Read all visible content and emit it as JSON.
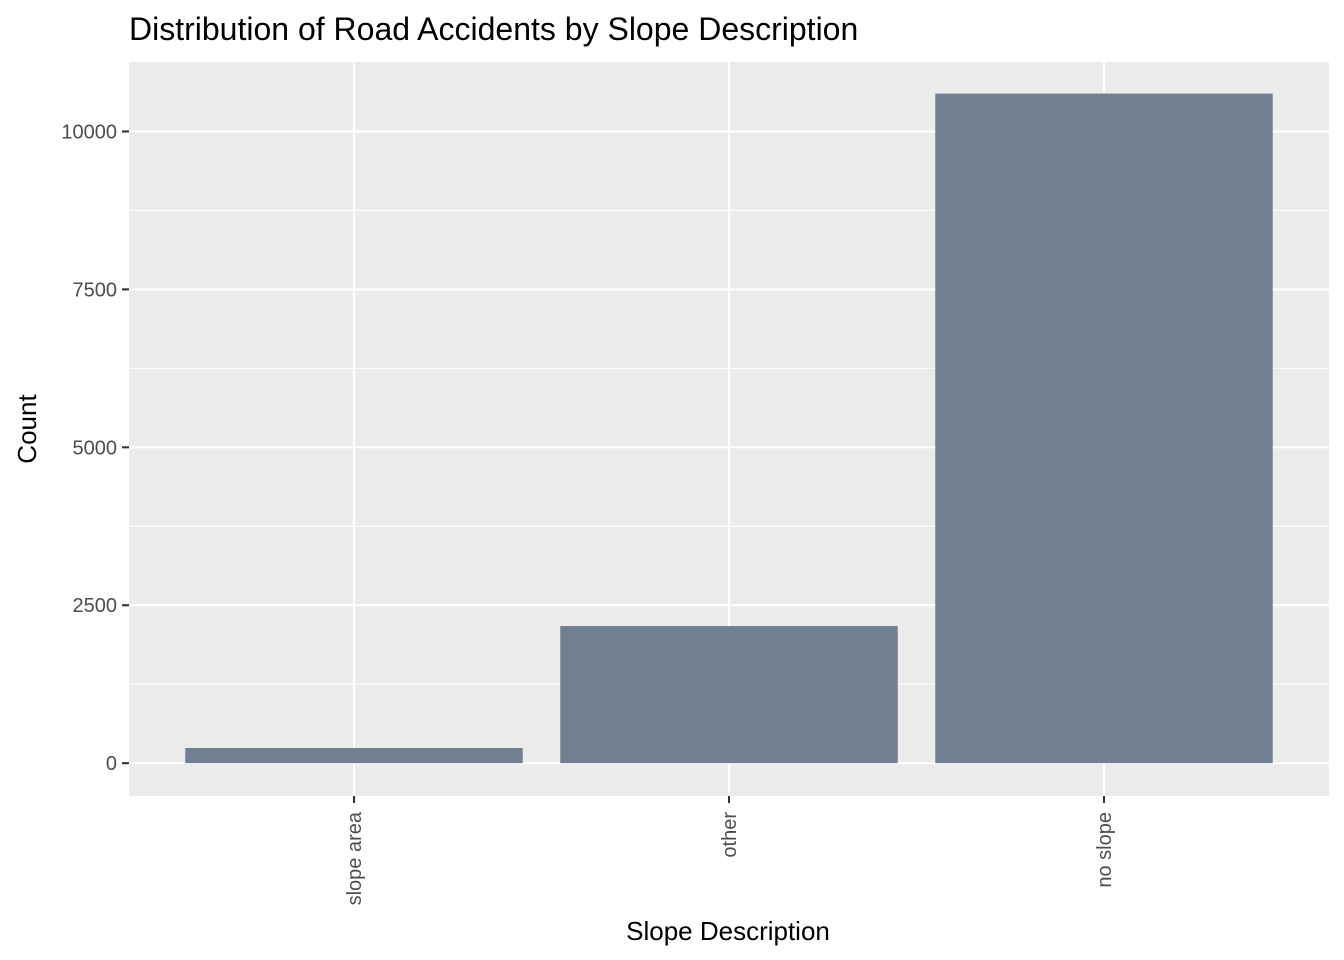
{
  "chart_data": {
    "type": "bar",
    "title": "Distribution of Road Accidents by Slope Description",
    "xlabel": "Slope Description",
    "ylabel": "Count",
    "categories": [
      "slope area",
      "other",
      "no slope"
    ],
    "values": [
      240,
      2170,
      10600
    ],
    "ylim": [
      -520,
      11100
    ],
    "yticks": [
      0,
      2500,
      5000,
      7500,
      10000
    ],
    "ytick_labels": [
      "0",
      "2500",
      "5000",
      "7500",
      "10000"
    ],
    "grid": true,
    "legend": "none",
    "bar_color": "#708090",
    "panel_color": "#ebebeb"
  }
}
